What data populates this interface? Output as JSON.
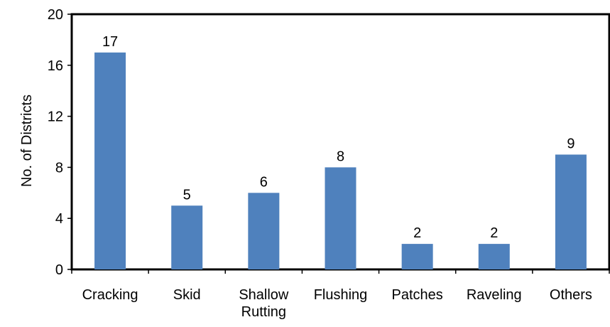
{
  "chart_data": {
    "type": "bar",
    "categories": [
      "Cracking",
      "Skid",
      "Shallow\nRutting",
      "Flushing",
      "Patches",
      "Raveling",
      "Others"
    ],
    "values": [
      17,
      5,
      6,
      8,
      2,
      2,
      9
    ],
    "data_labels": [
      "17",
      "5",
      "6",
      "8",
      "2",
      "2",
      "9"
    ],
    "title": "",
    "xlabel": "",
    "ylabel": "No. of Districts",
    "ylim": [
      0,
      20
    ],
    "yticks": [
      0,
      4,
      8,
      12,
      16,
      20
    ],
    "ytick_labels": [
      "0",
      "4",
      "8",
      "12",
      "16",
      "20"
    ],
    "grid": false,
    "legend": "none",
    "bar_color": "#4F81BD",
    "axis_color": "#000000"
  }
}
